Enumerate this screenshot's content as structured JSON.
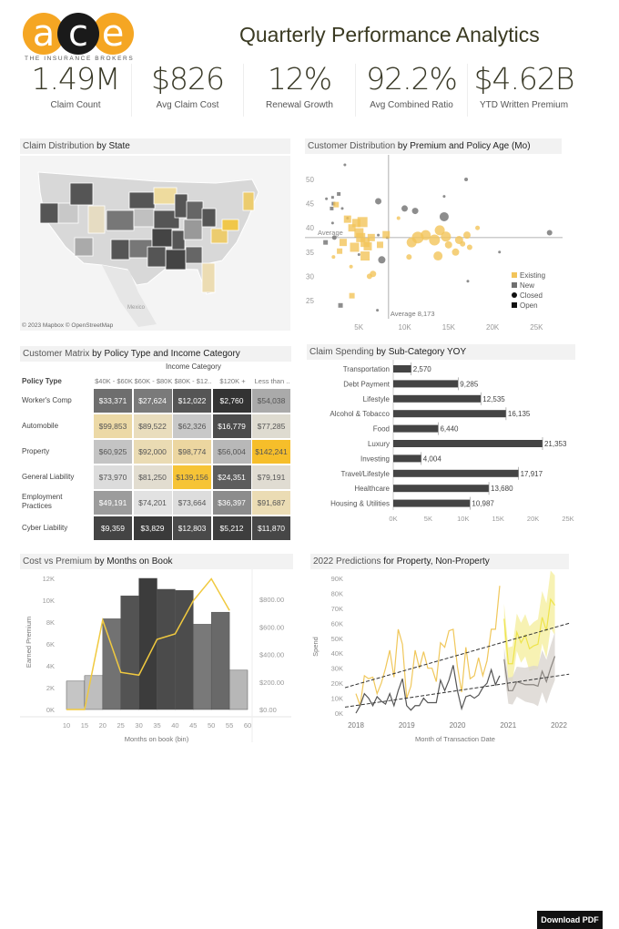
{
  "logo": {
    "letters": [
      "a",
      "c",
      "e"
    ],
    "tagline": "THE INSURANCE BROKERS",
    "colors": {
      "orange": "#F5A623",
      "black": "#1a1a1a"
    }
  },
  "header": {
    "title": "Quarterly Performance Analytics"
  },
  "kpis": [
    {
      "value": "1.49M",
      "label": "Claim Count"
    },
    {
      "value": "$826",
      "label": "Avg Claim Cost"
    },
    {
      "value": "12%",
      "label": "Renewal Growth"
    },
    {
      "value": "92.2%",
      "label": "Avg Combined Ratio"
    },
    {
      "value": "$4.62B",
      "label": "YTD Written Premium"
    }
  ],
  "map": {
    "title_a": "Claim Distribution ",
    "title_b": "by State",
    "attribution": "© 2023 Mapbox © OpenStreetMap",
    "label_mexico": "Mexico"
  },
  "scatter": {
    "title_a": "Customer Distribution ",
    "title_b": "by Premium and Policy Age (Mo)",
    "chart_data": {
      "type": "scatter",
      "xlim": [
        0,
        28000
      ],
      "ylim": [
        22,
        54
      ],
      "x_ticks": [
        "5K",
        "10K",
        "15K",
        "20K",
        "25K"
      ],
      "y_ticks": [
        25,
        30,
        35,
        40,
        45,
        50
      ],
      "avg_y_label": "Average",
      "avg_x_label": "Average 8,173",
      "avg_x": 8173,
      "avg_y": 38,
      "legend": [
        "Existing",
        "New",
        "Closed",
        "Open"
      ],
      "colors": {
        "Existing": "#F2C45A",
        "New": "#707070"
      },
      "points": [
        [
          3.2,
          53,
          2,
          "New",
          "circle"
        ],
        [
          17,
          50,
          3,
          "New",
          "circle"
        ],
        [
          14.5,
          46.5,
          2,
          "New",
          "circle"
        ],
        [
          1.1,
          46,
          2,
          "New",
          "circle"
        ],
        [
          1.8,
          46.3,
          2,
          "New",
          "square"
        ],
        [
          2.5,
          47,
          3,
          "New",
          "square"
        ],
        [
          1.9,
          45,
          3,
          "New",
          "square"
        ],
        [
          1.7,
          44,
          3,
          "New",
          "square"
        ],
        [
          2.9,
          44,
          2,
          "New",
          "circle"
        ],
        [
          7,
          45.5,
          6,
          "New",
          "circle"
        ],
        [
          10,
          44,
          6,
          "New",
          "circle"
        ],
        [
          11.2,
          43.5,
          6,
          "New",
          "circle"
        ],
        [
          14.5,
          42.3,
          9,
          "New",
          "circle"
        ],
        [
          3.5,
          42,
          2,
          "New",
          "circle"
        ],
        [
          1.8,
          41,
          2,
          "New",
          "circle"
        ],
        [
          26.5,
          39,
          5,
          "New",
          "circle"
        ],
        [
          2,
          38,
          4,
          "New",
          "circle"
        ],
        [
          1,
          37,
          4,
          "New",
          "square"
        ],
        [
          7,
          38.5,
          2,
          "New",
          "circle"
        ],
        [
          8,
          38,
          2,
          "New",
          "circle"
        ],
        [
          7.4,
          33.4,
          7,
          "New",
          "circle"
        ],
        [
          20.8,
          35,
          2,
          "New",
          "circle"
        ],
        [
          17.2,
          29,
          2,
          "New",
          "circle"
        ],
        [
          2.7,
          24,
          4,
          "New",
          "square"
        ],
        [
          6.9,
          23,
          2,
          "New",
          "circle"
        ],
        [
          4.8,
          34.5,
          2,
          "New",
          "circle"
        ],
        [
          2.2,
          44.8,
          5,
          "Existing",
          "square"
        ],
        [
          3.5,
          41.8,
          7,
          "Existing",
          "square"
        ],
        [
          4.5,
          41,
          8,
          "Existing",
          "square"
        ],
        [
          5.2,
          41.2,
          10,
          "Existing",
          "square"
        ],
        [
          4,
          40,
          7,
          "Existing",
          "square"
        ],
        [
          4.8,
          39,
          9,
          "Existing",
          "square"
        ],
        [
          5,
          38,
          9,
          "Existing",
          "square"
        ],
        [
          5.5,
          37,
          9,
          "Existing",
          "square"
        ],
        [
          3,
          37,
          7,
          "Existing",
          "square"
        ],
        [
          4.3,
          36,
          9,
          "Existing",
          "square"
        ],
        [
          5.8,
          36.2,
          8,
          "Existing",
          "square"
        ],
        [
          6.2,
          38,
          7,
          "Existing",
          "square"
        ],
        [
          7.2,
          36.5,
          6,
          "Existing",
          "square"
        ],
        [
          5.5,
          34.2,
          9,
          "Existing",
          "square"
        ],
        [
          2.6,
          35.2,
          5,
          "Existing",
          "square"
        ],
        [
          7.9,
          38.6,
          7,
          "Existing",
          "square"
        ],
        [
          6,
          30,
          5,
          "Existing",
          "circle"
        ],
        [
          6.4,
          30.5,
          6,
          "Existing",
          "circle"
        ],
        [
          3.9,
          32,
          3,
          "Existing",
          "circle"
        ],
        [
          4,
          26,
          5,
          "Existing",
          "square"
        ],
        [
          1.9,
          34,
          3,
          "Existing",
          "circle"
        ],
        [
          9.3,
          42,
          3,
          "Existing",
          "circle"
        ],
        [
          10.5,
          34,
          5,
          "Existing",
          "circle"
        ],
        [
          10.8,
          37,
          10,
          "Existing",
          "circle"
        ],
        [
          11.5,
          38,
          12,
          "Existing",
          "circle"
        ],
        [
          12.4,
          38.5,
          10,
          "Existing",
          "circle"
        ],
        [
          13.4,
          37.5,
          11,
          "Existing",
          "circle"
        ],
        [
          14,
          39.5,
          10,
          "Existing",
          "circle"
        ],
        [
          14.7,
          38.2,
          10,
          "Existing",
          "circle"
        ],
        [
          13.8,
          34.2,
          9,
          "Existing",
          "circle"
        ],
        [
          15,
          36.5,
          7,
          "Existing",
          "circle"
        ],
        [
          16.2,
          37.5,
          8,
          "Existing",
          "circle"
        ],
        [
          17.1,
          38.5,
          7,
          "Existing",
          "circle"
        ],
        [
          15.8,
          35,
          7,
          "Existing",
          "circle"
        ],
        [
          17.4,
          36,
          5,
          "Existing",
          "circle"
        ],
        [
          16.6,
          36.7,
          5,
          "Existing",
          "circle"
        ],
        [
          18.3,
          40,
          4,
          "Existing",
          "circle"
        ]
      ]
    }
  },
  "matrix": {
    "title_a": "Customer Matrix ",
    "title_b": "by Policy Type and Income Category",
    "col_header": "Income Category",
    "row_header": "Policy Type",
    "columns": [
      "$40K - $60K",
      "$60K - $80K",
      "$80K - $12..",
      "$120K +",
      "Less than .."
    ],
    "rows": [
      {
        "label": "Worker's Comp",
        "values": [
          "$33,371",
          "$27,624",
          "$12,022",
          "$2,760",
          "$54,038"
        ],
        "colors": [
          "#6e6e6e",
          "#7a7a7a",
          "#555555",
          "#333333",
          "#aaaaaa"
        ]
      },
      {
        "label": "Automobile",
        "values": [
          "$99,853",
          "$89,522",
          "$62,326",
          "$16,779",
          "$77,285"
        ],
        "colors": [
          "#ecd9a6",
          "#e9ddbd",
          "#c8c8c8",
          "#4c4c4c",
          "#dedbd0"
        ]
      },
      {
        "label": "Property",
        "values": [
          "$60,925",
          "$92,000",
          "$98,774",
          "$56,004",
          "$142,241"
        ],
        "colors": [
          "#c4c4c4",
          "#eadbb3",
          "#ecd6a0",
          "#b8b8b8",
          "#f6be2a"
        ]
      },
      {
        "label": "General Liability",
        "values": [
          "$73,970",
          "$81,250",
          "$139,156",
          "$24,351",
          "$79,191"
        ],
        "colors": [
          "#dcdcdc",
          "#e2ddd0",
          "#f6c436",
          "#5d5d5d",
          "#e0dcd2"
        ]
      },
      {
        "label": "Employment Practices",
        "values": [
          "$49,191",
          "$74,201",
          "$73,664",
          "$36,397",
          "$91,687"
        ],
        "colors": [
          "#9c9c9c",
          "#e2e2e2",
          "#dddddd",
          "#8c8c8c",
          "#ebdcb4"
        ]
      },
      {
        "label": "Cyber Liability",
        "values": [
          "$9,359",
          "$3,829",
          "$12,803",
          "$5,212",
          "$11,870"
        ],
        "colors": [
          "#444444",
          "#3a3a3a",
          "#4a4a4a",
          "#3e3e3e",
          "#474747"
        ]
      }
    ]
  },
  "spending": {
    "title_a": "Claim Spending ",
    "title_b": "by Sub-Category YOY",
    "chart_data": {
      "type": "bar",
      "orientation": "horizontal",
      "xlim": [
        0,
        25000
      ],
      "x_ticks": [
        "0K",
        "5K",
        "10K",
        "15K",
        "20K",
        "25K"
      ],
      "color": "#444444",
      "categories": [
        "Transportation",
        "Debt Payment",
        "Lifestyle",
        "Alcohol & Tobacco",
        "Food",
        "Luxury",
        "Investing",
        "Travel/Lifestyle",
        "Healthcare",
        "Housing & Utilities"
      ],
      "values": [
        2570,
        9285,
        12535,
        16135,
        6440,
        21353,
        4004,
        17917,
        13680,
        10987
      ],
      "labels": [
        "2,570",
        "9,285",
        "12,535",
        "16,135",
        "6,440",
        "21,353",
        "4,004",
        "17,917",
        "13,680",
        "10,987"
      ]
    }
  },
  "combo": {
    "title_a": "Cost vs Premium ",
    "title_b": "by Months on Book",
    "chart_data": {
      "type": "bar",
      "ylabel": "Earned Premium",
      "xlabel": "Months on book (bin)",
      "ylim": [
        0,
        12000
      ],
      "y2lim": [
        0,
        1000
      ],
      "y_ticks": [
        "0K",
        "2K",
        "4K",
        "6K",
        "8K",
        "10K",
        "12K"
      ],
      "y2_ticks": [
        "$0.00",
        "$200.00",
        "$400.00",
        "$600.00",
        "$800.00"
      ],
      "x_ticks": [
        "10",
        "15",
        "20",
        "25",
        "30",
        "35",
        "40",
        "45",
        "50",
        "55",
        "60"
      ],
      "bins": [
        10,
        15,
        20,
        25,
        30,
        35,
        40,
        45,
        50,
        55
      ],
      "bar_values": [
        2600,
        3100,
        8300,
        10400,
        12000,
        11000,
        10900,
        7800,
        8900,
        3600
      ],
      "line_values": [
        0,
        0,
        650,
        270,
        250,
        510,
        550,
        790,
        950,
        720
      ],
      "line_color": "#F0C93F"
    }
  },
  "forecast": {
    "title_a": "2022 Predictions ",
    "title_b": "for Property, Non-Property",
    "chart_data": {
      "type": "line",
      "ylabel": "Spend",
      "xlabel": "Month of Transaction Date",
      "ylim": [
        0,
        90000
      ],
      "y_ticks": [
        "0K",
        "10K",
        "20K",
        "30K",
        "40K",
        "50K",
        "60K",
        "70K",
        "80K",
        "90K"
      ],
      "x_ticks": [
        "2018",
        "2019",
        "2020",
        "2021",
        "2022"
      ],
      "colors": {
        "property": "#F0C75A",
        "non_property": "#555555",
        "forecast_property": "#EEE44A",
        "forecast_band_property": "#F5EFA0",
        "forecast_band_non_property": "#D9D5CF"
      },
      "property": [
        13,
        5,
        25,
        23,
        24,
        13,
        20,
        30,
        42,
        24,
        56,
        46,
        10,
        18,
        42,
        30,
        41,
        30,
        30,
        21,
        47,
        44,
        55,
        56,
        31,
        14,
        44,
        23,
        25,
        37,
        25,
        35,
        56,
        56,
        85
      ],
      "non_property": [
        0,
        5,
        13,
        10,
        5,
        11,
        8,
        6,
        13,
        5,
        15,
        23,
        5,
        2,
        5,
        5,
        10,
        7,
        7,
        7,
        22,
        15,
        22,
        32,
        15,
        3,
        11,
        12,
        10,
        12,
        17,
        20,
        29,
        19,
        25
      ],
      "forecast_property": [
        63,
        33,
        33,
        54,
        47,
        52,
        43,
        45,
        46,
        64,
        55,
        76,
        72
      ],
      "forecast_non_property": [
        36,
        15,
        15,
        21,
        20,
        19,
        19,
        19,
        18,
        28,
        21,
        30,
        38
      ],
      "trend_property": [
        17,
        60
      ],
      "trend_non_property": [
        4,
        26
      ]
    }
  },
  "download": {
    "label": "Download PDF"
  }
}
